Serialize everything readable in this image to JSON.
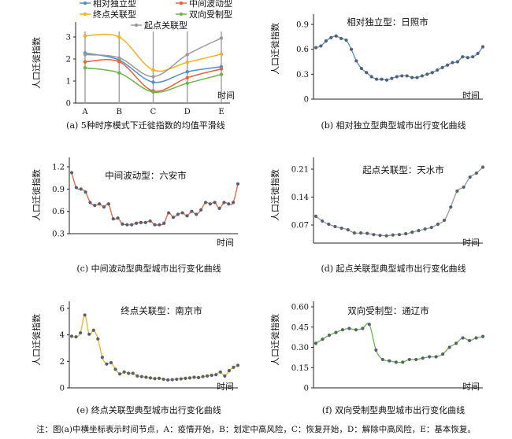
{
  "note": "注：图(a)中横坐标表示时间节点，A：疫情开始，B：划定中高风险，C：恢复开始，D：解除中高风险，E：基本恢复。",
  "colors": {
    "blue": "#4f8fce",
    "red": "#e8633a",
    "yellow": "#f2b21c",
    "green": "#6cb547",
    "gray": "#9a9a9a",
    "dots": "#556070"
  },
  "chart_data": [
    {
      "id": "a",
      "type": "line",
      "caption": "(a) 5种时序模式下迁徙指数的均值平滑线",
      "title": "",
      "xlabel": "时间",
      "ylabel": "人口迁徙指数",
      "categories": [
        "A",
        "B",
        "C",
        "D",
        "E"
      ],
      "ylim": [
        0,
        3.5
      ],
      "yticks": [
        0,
        1,
        2,
        3
      ],
      "legend_position": "top",
      "series": [
        {
          "name": "相对独立型",
          "color": "#4f8fce",
          "values": [
            2.27,
            1.95,
            0.95,
            1.42,
            1.65
          ]
        },
        {
          "name": "中间波动型",
          "color": "#e8633a",
          "values": [
            1.87,
            1.88,
            0.55,
            1.15,
            1.55
          ]
        },
        {
          "name": "终点关联型",
          "color": "#f2b21c",
          "values": [
            3.05,
            3.0,
            1.5,
            1.85,
            2.22
          ]
        },
        {
          "name": "双向受制型",
          "color": "#6cb547",
          "values": [
            1.6,
            1.37,
            0.5,
            0.9,
            1.3
          ]
        },
        {
          "name": "起点关联型",
          "color": "#9a9a9a",
          "values": [
            2.2,
            2.05,
            1.2,
            2.2,
            2.95
          ]
        }
      ]
    },
    {
      "id": "b",
      "type": "line",
      "caption": "(b) 相对独立型典型城市出行变化曲线",
      "title": "相对独立型：日照市",
      "xlabel": "时间",
      "ylabel": "人口迁徙指数",
      "ylim": [
        0,
        1.0
      ],
      "yticks": [
        0,
        0.3,
        0.6,
        0.9
      ],
      "tick_labels": [
        "0",
        "0.3",
        "0.6",
        "0.9"
      ],
      "color": "#4f8fce",
      "values": [
        0.62,
        0.64,
        0.7,
        0.74,
        0.76,
        0.73,
        0.71,
        0.6,
        0.46,
        0.37,
        0.32,
        0.27,
        0.24,
        0.24,
        0.23,
        0.25,
        0.27,
        0.28,
        0.28,
        0.26,
        0.26,
        0.28,
        0.3,
        0.32,
        0.35,
        0.38,
        0.41,
        0.44,
        0.45,
        0.51,
        0.5,
        0.51,
        0.55,
        0.63
      ]
    },
    {
      "id": "c",
      "type": "line",
      "caption": "(c) 中间波动型典型城市出行变化曲线",
      "title": "中间波动型：六安市",
      "xlabel": "时间",
      "ylabel": "人口迁徙指数",
      "ylim": [
        0.3,
        1.3
      ],
      "yticks": [
        0.3,
        0.6,
        0.9,
        1.2
      ],
      "tick_labels": [
        "0.3",
        "0.6",
        "0.9",
        "1.2"
      ],
      "color": "#e8633a",
      "values": [
        1.12,
        0.92,
        0.9,
        0.86,
        0.72,
        0.68,
        0.7,
        0.66,
        0.7,
        0.5,
        0.51,
        0.43,
        0.42,
        0.42,
        0.44,
        0.45,
        0.45,
        0.47,
        0.42,
        0.42,
        0.44,
        0.58,
        0.52,
        0.56,
        0.58,
        0.54,
        0.6,
        0.56,
        0.62,
        0.72,
        0.7,
        0.72,
        0.64,
        0.72,
        0.7,
        0.72,
        0.97
      ]
    },
    {
      "id": "d",
      "type": "line",
      "caption": "(d) 起点关联型典型城市出行变化曲线",
      "title": "起点关联型：天水市",
      "xlabel": "时间",
      "ylabel": "人口迁徙指数",
      "ylim": [
        0,
        0.23
      ],
      "yticks": [
        0.07,
        0.14,
        0.21
      ],
      "tick_labels": [
        "0.07",
        "0.14",
        "0.21"
      ],
      "color": "#9a9a9a",
      "values": [
        0.092,
        0.08,
        0.072,
        0.066,
        0.062,
        0.058,
        0.05,
        0.05,
        0.049,
        0.046,
        0.044,
        0.043,
        0.045,
        0.046,
        0.048,
        0.052,
        0.056,
        0.06,
        0.064,
        0.072,
        0.082,
        0.115,
        0.155,
        0.165,
        0.19,
        0.2,
        0.215
      ]
    },
    {
      "id": "e",
      "type": "line",
      "caption": "(e) 终点关联型典型城市出行变化曲线",
      "title": "终点关联型：南京市",
      "xlabel": "时间",
      "ylabel": "人口迁徙指数",
      "ylim": [
        0,
        6.5
      ],
      "yticks": [
        0,
        2,
        4,
        6
      ],
      "tick_labels": [
        "0",
        "2",
        "4",
        "6"
      ],
      "color": "#f2b21c",
      "values": [
        3.9,
        3.85,
        4.15,
        5.5,
        4.05,
        4.35,
        3.7,
        2.3,
        1.8,
        1.9,
        1.4,
        1.05,
        1.2,
        1.1,
        1.1,
        0.9,
        0.85,
        0.8,
        0.75,
        0.7,
        0.72,
        0.65,
        0.6,
        0.62,
        0.65,
        0.68,
        0.72,
        0.75,
        0.8,
        0.78,
        0.85,
        0.9,
        0.95,
        1.0,
        1.2,
        0.9,
        1.3,
        1.55,
        1.7
      ]
    },
    {
      "id": "f",
      "type": "line",
      "caption": "(f) 双向受制型典型城市出行变化曲线",
      "title": "双向受制型：通辽市",
      "xlabel": "时间",
      "ylabel": "人口迁徙指数",
      "ylim": [
        0,
        0.65
      ],
      "yticks": [
        0,
        0.15,
        0.3,
        0.45,
        0.6
      ],
      "tick_labels": [
        "0",
        "0.15",
        "0.30",
        "0.45",
        "0.60"
      ],
      "color": "#6cb547",
      "values": [
        0.33,
        0.36,
        0.39,
        0.41,
        0.43,
        0.44,
        0.43,
        0.44,
        0.47,
        0.28,
        0.21,
        0.2,
        0.19,
        0.19,
        0.21,
        0.21,
        0.22,
        0.23,
        0.23,
        0.25,
        0.3,
        0.33,
        0.37,
        0.35,
        0.37,
        0.38
      ]
    }
  ]
}
